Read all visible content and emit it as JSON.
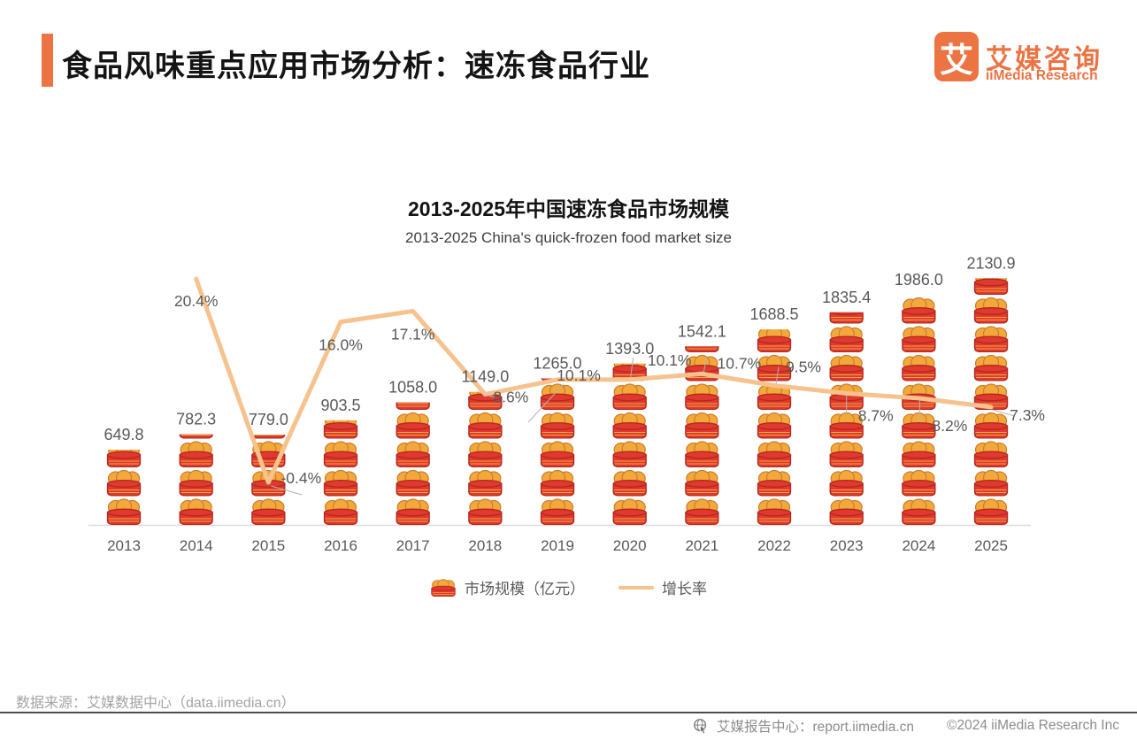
{
  "header": {
    "title": "食品风味重点应用市场分析：速冻食品行业",
    "logo": {
      "mark": "艾",
      "brand_cn": "艾媒咨询",
      "brand_en": "iiMedia Research"
    }
  },
  "chart": {
    "title": "2013-2025年中国速冻食品市场规模",
    "subtitle": "2013-2025 China's quick-frozen food market size",
    "legend": {
      "market": "市场规模（亿元）",
      "growth": "增长率"
    }
  },
  "chart_data": {
    "type": "bar",
    "subtype": "pictogram bars (steamer-basket icons) with growth-rate line overlay",
    "title": "2013-2025年中国速冻食品市场规模",
    "subtitle": "2013-2025 China's quick-frozen food market size",
    "categories": [
      "2013",
      "2014",
      "2015",
      "2016",
      "2017",
      "2018",
      "2019",
      "2020",
      "2021",
      "2022",
      "2023",
      "2024",
      "2025"
    ],
    "series": [
      {
        "name": "市场规模（亿元）",
        "type": "bar",
        "unit": "亿元",
        "values": [
          649.8,
          782.3,
          779.0,
          903.5,
          1058.0,
          1149.0,
          1265.0,
          1393.0,
          1542.1,
          1688.5,
          1835.4,
          1986.0,
          2130.9
        ]
      },
      {
        "name": "增长率",
        "type": "line",
        "unit": "%",
        "values": [
          null,
          20.4,
          -0.4,
          16.0,
          17.1,
          8.6,
          10.1,
          10.1,
          10.7,
          9.5,
          8.7,
          8.2,
          7.3
        ]
      }
    ],
    "bar_icon": "steamer-basket-with-buns",
    "value_label_format": "one-decimal",
    "growth_label_format": "one-decimal-percent",
    "legend_position": "bottom",
    "grid": false,
    "axes": {
      "x": "year",
      "y_axis_visible": false
    }
  },
  "footer": {
    "source": "数据来源：艾媒数据中心（data.iimedia.cn）",
    "report_center": "艾媒报告中心：report.iimedia.cn",
    "copyright": "©2024   iiMedia Research Inc"
  },
  "colors": {
    "accent": "#EC7342",
    "line": "#F6C28D",
    "steamer_red": "#E0392F",
    "steamer_red_dark": "#B4281F",
    "bun_orange": "#F2A93B",
    "bun_orange_dark": "#D07B28",
    "label_gray": "#595959",
    "footer_gray": "#9B9B9B",
    "divider_gray": "#4D4D4D",
    "axis_gray": "#DCDCDC"
  }
}
